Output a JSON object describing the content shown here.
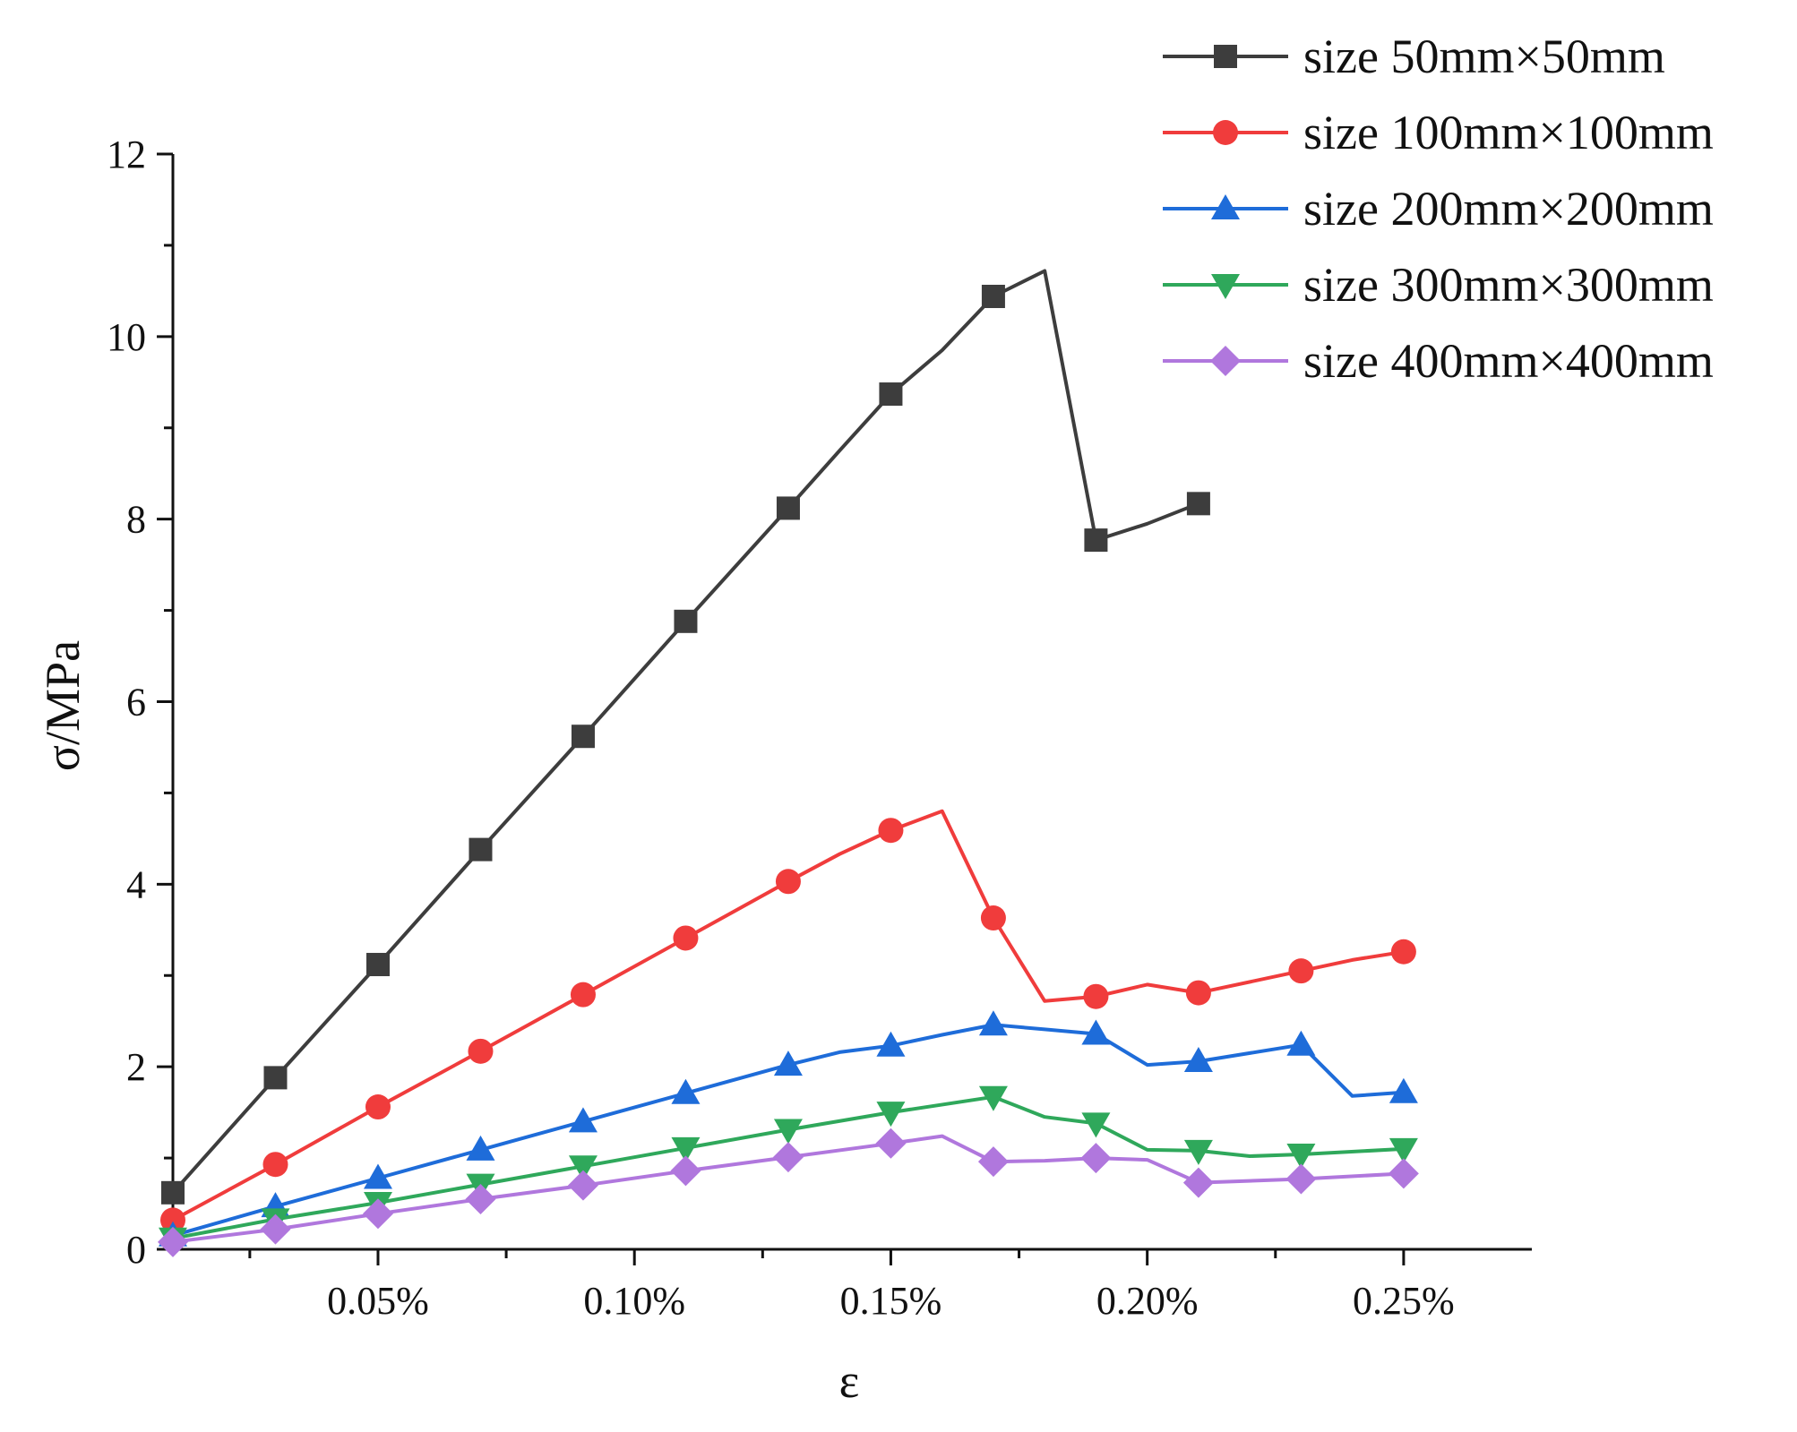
{
  "chart_data": {
    "type": "line",
    "title": "",
    "xlabel": "ε",
    "ylabel": "σ/MPa",
    "xlim": [
      0.01,
      0.275
    ],
    "ylim": [
      0,
      12
    ],
    "x_ticks": [
      0.05,
      0.1,
      0.15,
      0.2,
      0.25
    ],
    "x_tick_labels": [
      "0.05%",
      "0.10%",
      "0.15%",
      "0.20%",
      "0.25%"
    ],
    "x_minor_ticks": [
      0.025,
      0.075,
      0.125,
      0.175,
      0.225
    ],
    "y_ticks": [
      0,
      2,
      4,
      6,
      8,
      10,
      12
    ],
    "y_tick_labels": [
      "0",
      "2",
      "4",
      "6",
      "8",
      "10",
      "12"
    ],
    "y_minor_ticks": [
      1,
      3,
      5,
      7,
      9,
      11
    ],
    "grid": false,
    "legend_position": "top-right",
    "series": [
      {
        "name": "size 50mm×50mm",
        "color": "#3d3d3d",
        "marker": "square",
        "x": [
          0.01,
          0.03,
          0.05,
          0.07,
          0.09,
          0.11,
          0.13,
          0.14,
          0.15,
          0.16,
          0.17,
          0.18,
          0.19,
          0.2,
          0.21
        ],
        "y": [
          0.62,
          1.88,
          3.12,
          4.38,
          5.62,
          6.88,
          8.12,
          8.75,
          9.37,
          9.85,
          10.44,
          10.72,
          7.77,
          7.95,
          8.17
        ],
        "marker_x": [
          0.01,
          0.03,
          0.05,
          0.07,
          0.09,
          0.11,
          0.13,
          0.15,
          0.17,
          0.19,
          0.21
        ]
      },
      {
        "name": "size 100mm×100mm",
        "color": "#f03c3c",
        "marker": "circle",
        "x": [
          0.01,
          0.03,
          0.05,
          0.07,
          0.09,
          0.11,
          0.13,
          0.14,
          0.15,
          0.16,
          0.17,
          0.18,
          0.19,
          0.2,
          0.21,
          0.23,
          0.24,
          0.25
        ],
        "y": [
          0.32,
          0.93,
          1.56,
          2.17,
          2.79,
          3.41,
          4.03,
          4.33,
          4.59,
          4.8,
          3.63,
          2.72,
          2.77,
          2.9,
          2.81,
          3.05,
          3.17,
          3.26
        ],
        "marker_x": [
          0.01,
          0.03,
          0.05,
          0.07,
          0.09,
          0.11,
          0.13,
          0.15,
          0.17,
          0.19,
          0.21,
          0.23,
          0.25
        ]
      },
      {
        "name": "size 200mm×200mm",
        "color": "#1e6cd9",
        "marker": "triangle-up",
        "x": [
          0.01,
          0.03,
          0.05,
          0.07,
          0.09,
          0.11,
          0.13,
          0.14,
          0.15,
          0.16,
          0.17,
          0.18,
          0.19,
          0.2,
          0.21,
          0.23,
          0.24,
          0.25
        ],
        "y": [
          0.15,
          0.47,
          0.78,
          1.09,
          1.4,
          1.71,
          2.02,
          2.16,
          2.23,
          2.35,
          2.46,
          2.41,
          2.36,
          2.02,
          2.06,
          2.24,
          1.68,
          1.72
        ],
        "marker_x": [
          0.01,
          0.03,
          0.05,
          0.07,
          0.09,
          0.11,
          0.13,
          0.15,
          0.17,
          0.19,
          0.21,
          0.23,
          0.25
        ]
      },
      {
        "name": "size 300mm×300mm",
        "color": "#2fa85b",
        "marker": "triangle-down",
        "x": [
          0.01,
          0.03,
          0.05,
          0.07,
          0.09,
          0.11,
          0.13,
          0.15,
          0.17,
          0.18,
          0.19,
          0.2,
          0.21,
          0.22,
          0.23,
          0.25
        ],
        "y": [
          0.12,
          0.33,
          0.51,
          0.71,
          0.91,
          1.11,
          1.31,
          1.5,
          1.67,
          1.45,
          1.38,
          1.09,
          1.08,
          1.02,
          1.04,
          1.1
        ],
        "marker_x": [
          0.01,
          0.03,
          0.05,
          0.07,
          0.09,
          0.11,
          0.13,
          0.15,
          0.17,
          0.19,
          0.21,
          0.23,
          0.25
        ]
      },
      {
        "name": "size 400mm×400mm",
        "color": "#b077dd",
        "marker": "diamond",
        "x": [
          0.01,
          0.03,
          0.05,
          0.07,
          0.09,
          0.11,
          0.13,
          0.15,
          0.16,
          0.17,
          0.18,
          0.19,
          0.2,
          0.21,
          0.23,
          0.25
        ],
        "y": [
          0.08,
          0.22,
          0.39,
          0.55,
          0.7,
          0.86,
          1.01,
          1.16,
          1.24,
          0.96,
          0.97,
          1.0,
          0.98,
          0.73,
          0.77,
          0.83
        ],
        "marker_x": [
          0.01,
          0.03,
          0.05,
          0.07,
          0.09,
          0.11,
          0.13,
          0.15,
          0.17,
          0.19,
          0.21,
          0.23,
          0.25
        ]
      }
    ]
  }
}
